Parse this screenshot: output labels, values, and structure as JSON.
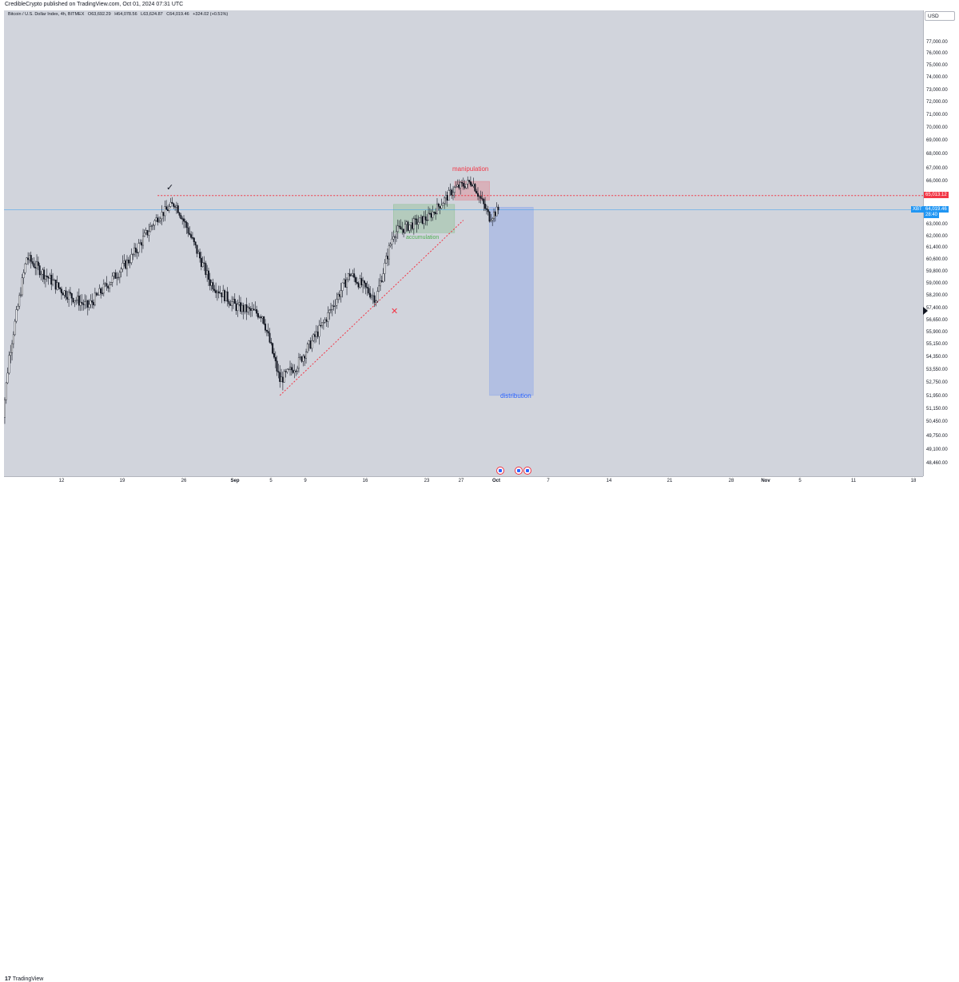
{
  "header": {
    "published": "CredibleCrypto published on TradingView.com, Oct 01, 2024 07:31 UTC"
  },
  "legend": {
    "symbol": "Bitcoin / U.S. Dollar Index, 4h, BITMEX",
    "open_k": "O",
    "open": "63,692.29",
    "high_k": "H",
    "high": "64,078.56",
    "low_k": "L",
    "low": "63,624.87",
    "close_k": "C",
    "close": "64,019.46",
    "change": "+324.02 (+0.51%)"
  },
  "currency": "USD",
  "price_axis": {
    "labels": [
      "77,000.00",
      "76,000.00",
      "75,000.00",
      "74,000.00",
      "73,000.00",
      "72,000.00",
      "71,000.00",
      "70,000.00",
      "69,000.00",
      "68,000.00",
      "67,000.00",
      "66,000.00",
      "63,000.00",
      "62,000.00",
      "61,400.00",
      "60,600.00",
      "59,800.00",
      "59,000.00",
      "58,200.00",
      "57,400.00",
      "56,650.00",
      "55,900.00",
      "55,150.00",
      "54,350.00",
      "53,550.00",
      "52,750.00",
      "51,950.00",
      "51,150.00",
      "50,450.00",
      "49,750.00",
      "49,100.00",
      "48,460.00"
    ],
    "level_tag": "65,013.12",
    "current_symbol": "XBT",
    "current_price": "64,019.46",
    "countdown": "28:40"
  },
  "time_axis": [
    "12",
    "19",
    "26",
    "Sep",
    "5",
    "9",
    "16",
    "23",
    "27",
    "Oct",
    "7",
    "14",
    "21",
    "28",
    "Nov",
    "5",
    "11",
    "18"
  ],
  "annotations": {
    "manipulation": "manipulation",
    "accumulation": "accumulation",
    "distribution": "distribution",
    "check": "✓",
    "cross": "✕"
  },
  "colors": {
    "up_candle": "#ffffff",
    "down_candle": "#131722",
    "manipulation": "#f23645",
    "accumulation": "#4caf50",
    "distribution": "#2962ff",
    "level_line": "#f23645",
    "price_line": "#2196f3"
  },
  "footer": {
    "brand": "TradingView"
  },
  "chart_data": {
    "type": "candlestick",
    "symbol": "Bitcoin / U.S. Dollar Index, 4h, BITMEX",
    "timeframe": "4h",
    "approx_close_path": [
      {
        "x": "Aug 5",
        "y": 49800
      },
      {
        "x": "Aug 6",
        "y": 55000
      },
      {
        "x": "Aug 8",
        "y": 61000
      },
      {
        "x": "Aug 12",
        "y": 59000
      },
      {
        "x": "Aug 15",
        "y": 58000
      },
      {
        "x": "Aug 20",
        "y": 61000
      },
      {
        "x": "Aug 23",
        "y": 63500
      },
      {
        "x": "Aug 25",
        "y": 64500
      },
      {
        "x": "Aug 27",
        "y": 62000
      },
      {
        "x": "Aug 29",
        "y": 59500
      },
      {
        "x": "Sep 1",
        "y": 58000
      },
      {
        "x": "Sep 4",
        "y": 57500
      },
      {
        "x": "Sep 6",
        "y": 53500
      },
      {
        "x": "Sep 8",
        "y": 54500
      },
      {
        "x": "Sep 11",
        "y": 57000
      },
      {
        "x": "Sep 14",
        "y": 60000
      },
      {
        "x": "Sep 17",
        "y": 58500
      },
      {
        "x": "Sep 19",
        "y": 62500
      },
      {
        "x": "Sep 23",
        "y": 63500
      },
      {
        "x": "Sep 26",
        "y": 65500
      },
      {
        "x": "Sep 28",
        "y": 66000
      },
      {
        "x": "Sep 30",
        "y": 63500
      },
      {
        "x": "Oct 1",
        "y": 64019.46
      }
    ],
    "horizontal_level": 65013.12,
    "current_price": 64019.46,
    "zones": {
      "accumulation": {
        "x": [
          "Sep 19",
          "Sep 26"
        ],
        "y": [
          62500,
          64400
        ]
      },
      "manipulation": {
        "x": [
          "Sep 26",
          "Sep 30"
        ],
        "y": [
          64700,
          66000
        ]
      },
      "distribution": {
        "x": [
          "Sep 30",
          "Oct 5"
        ],
        "y": [
          52600,
          64200
        ]
      }
    },
    "trendline": {
      "from": {
        "x": "Sep 6",
        "y": 52600
      },
      "to": {
        "x": "Sep 27",
        "y": 63300
      }
    },
    "ylim": [
      47800,
      77800
    ],
    "grid": false,
    "legend": "top-left"
  }
}
